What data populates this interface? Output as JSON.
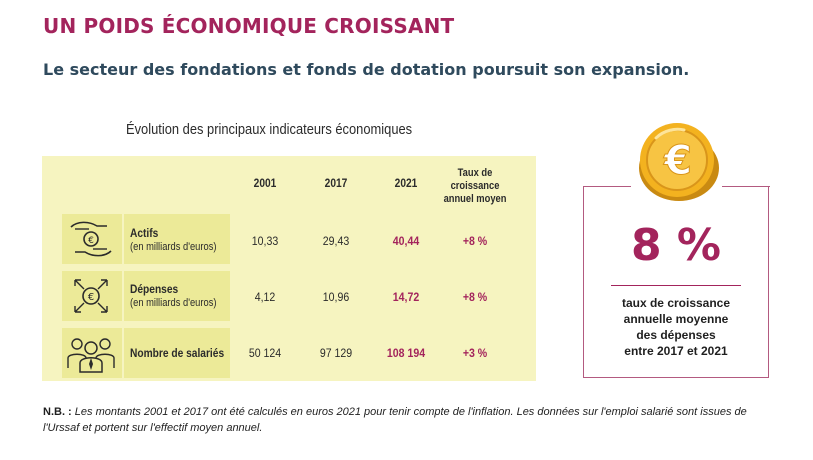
{
  "header": {
    "title": "UN POIDS ÉCONOMIQUE CROISSANT",
    "subtitle": "Le secteur des fondations et fonds de dotation poursuit son expansion."
  },
  "chart_data": {
    "type": "table",
    "title": "Évolution des principaux indicateurs économiques",
    "columns": [
      "",
      "2001",
      "2017",
      "2021",
      "Taux de croissance annuel moyen"
    ],
    "rate_header": [
      "Taux de croissance",
      "annuel moyen"
    ],
    "rows": [
      {
        "label": "Actifs",
        "sublabel": "(en milliards d'euros)",
        "icon": "hands-euro-icon",
        "v2001": "10,33",
        "v2017": "29,43",
        "v2021": "40,44",
        "rate": "+8 %"
      },
      {
        "label": "Dépenses",
        "sublabel": "(en milliards d'euros)",
        "icon": "euro-arrows-icon",
        "v2001": "4,12",
        "v2017": "10,96",
        "v2021": "14,72",
        "rate": "+8 %"
      },
      {
        "label": "Nombre de salariés",
        "sublabel": "",
        "icon": "employees-icon",
        "v2001": "50 124",
        "v2017": "97 129",
        "v2021": "108 194",
        "rate": "+3 %"
      }
    ]
  },
  "callout": {
    "icon": "gold-euro-coin-icon",
    "value": "8 %",
    "lines": [
      "taux de croissance",
      "annuelle moyenne",
      "des dépenses",
      "entre 2017 et 2021"
    ]
  },
  "note": {
    "prefix": "N.B. :",
    "text": "Les montants 2001 et 2017 ont été calculés en euros 2021 pour tenir compte de l'inflation. Les données sur l'emploi salarié sont issues de l'Urssaf et portent sur l'effectif moyen annuel."
  },
  "colors": {
    "accent": "#a3245c",
    "subtitle": "#2f4a5d",
    "panel": "#f6f4c0",
    "cell": "#ecea98",
    "coin": "#f2b21c"
  }
}
